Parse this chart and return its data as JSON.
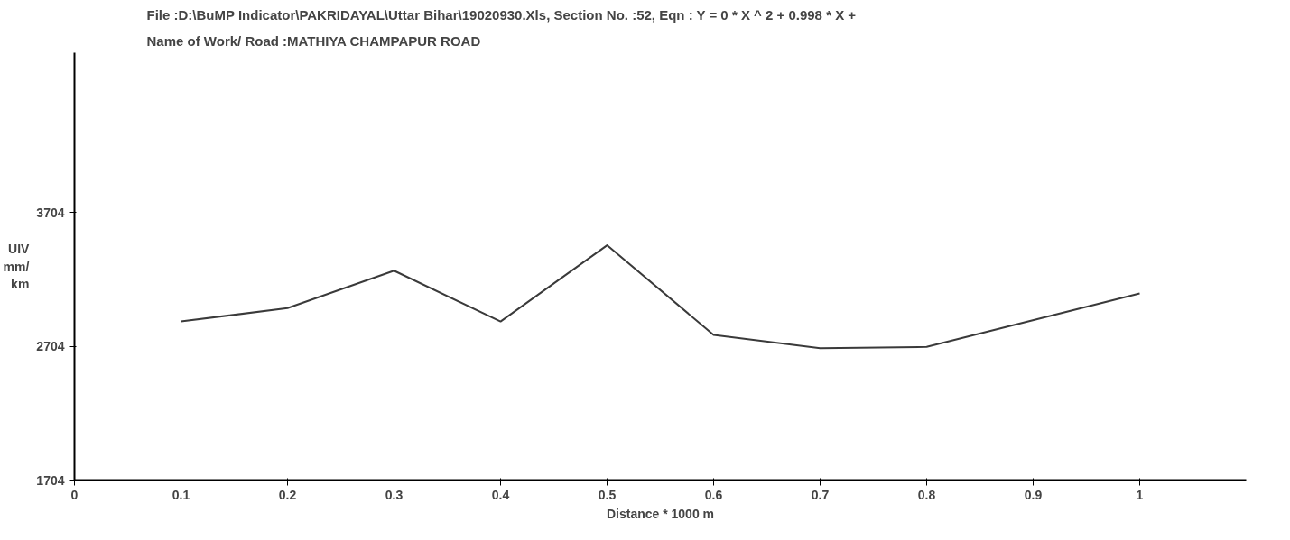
{
  "chart_data": {
    "type": "line",
    "title": "File :D:\\BuMP Indicator\\PAKRIDAYAL\\Uttar Bihar\\19020930.Xls,    Section No. :52,  Eqn : Y = 0 * X ^ 2 + 0.998 * X +",
    "subtitle": "Name of Work/ Road :MATHIYA CHAMPAPUR ROAD",
    "xlabel": "Distance * 1000 m",
    "ylabel": "UIV mm/ km",
    "x": [
      0.1,
      0.2,
      0.3,
      0.4,
      0.5,
      0.6,
      0.7,
      0.8,
      1.0
    ],
    "series": [
      {
        "color": "#3a3a3a",
        "values": [
          2890,
          2990,
          3270,
          2890,
          3460,
          2790,
          2690,
          2700,
          3100
        ]
      }
    ],
    "xlim": [
      0,
      1.1
    ],
    "xticks": [
      0,
      0.1,
      0.2,
      0.3,
      0.4,
      0.5,
      0.6,
      0.7,
      0.8,
      0.9,
      1
    ],
    "ylim": [
      1704,
      4900
    ],
    "yticks": [
      1704,
      2704,
      3704
    ],
    "grid": false,
    "marker": "none",
    "line_style": "solid"
  }
}
